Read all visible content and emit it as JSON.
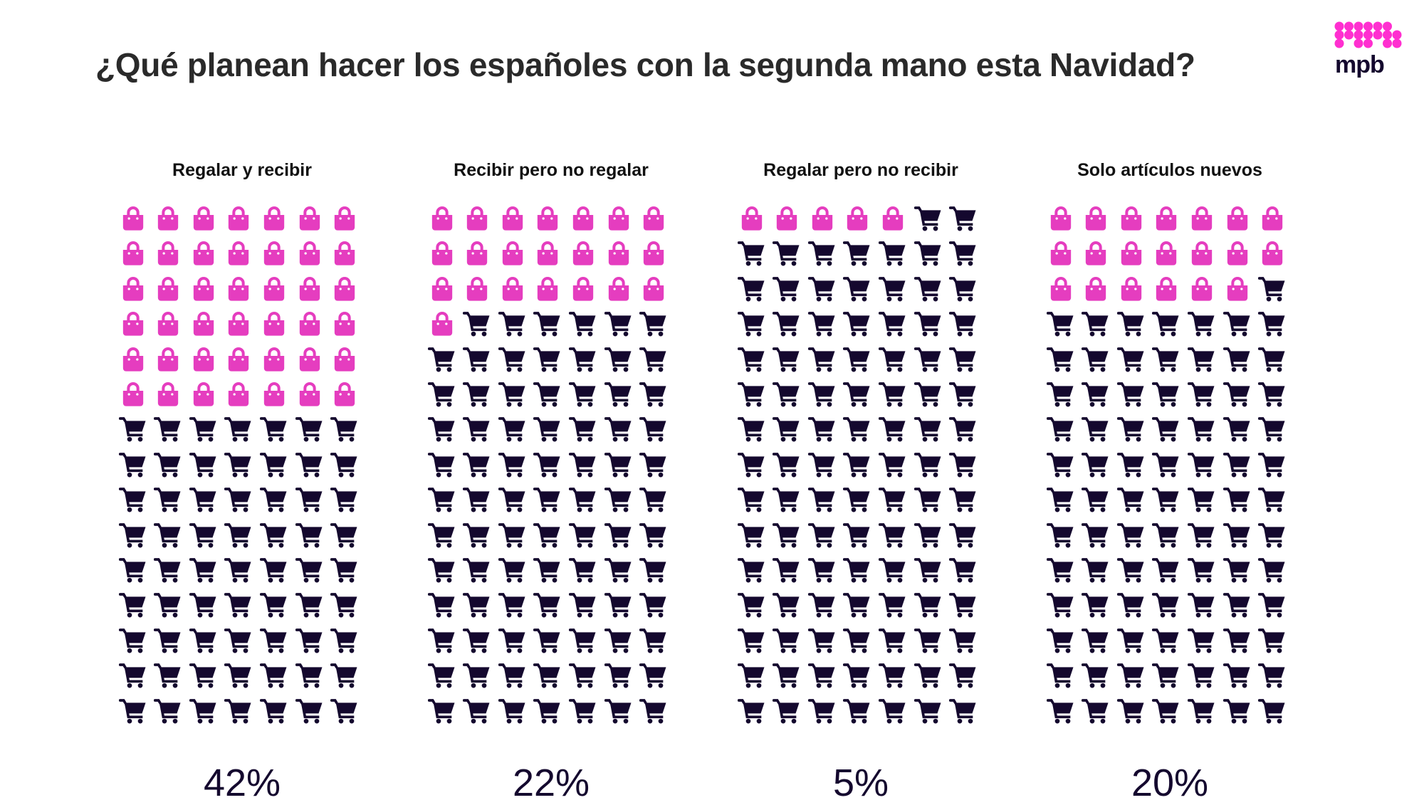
{
  "title": "¿Qué planean hacer los españoles con la segunda mano esta Navidad?",
  "logo_text": "mpb",
  "colors": {
    "bag": "#e53dbf",
    "cart": "#14082e",
    "logo_dots": "#ff2fd0"
  },
  "chart_data": {
    "type": "pictogram",
    "grid": {
      "columns": 7,
      "rows": 15
    },
    "icons": {
      "highlighted": "shopping-bag-icon",
      "rest": "shopping-cart-icon"
    },
    "categories": [
      "Regalar y recibir",
      "Recibir pero no regalar",
      "Regalar pero no recibir",
      "Solo artículos nuevos"
    ],
    "values": [
      42,
      22,
      5,
      20
    ],
    "labels": [
      "42%",
      "22%",
      "5%",
      "20%"
    ]
  }
}
